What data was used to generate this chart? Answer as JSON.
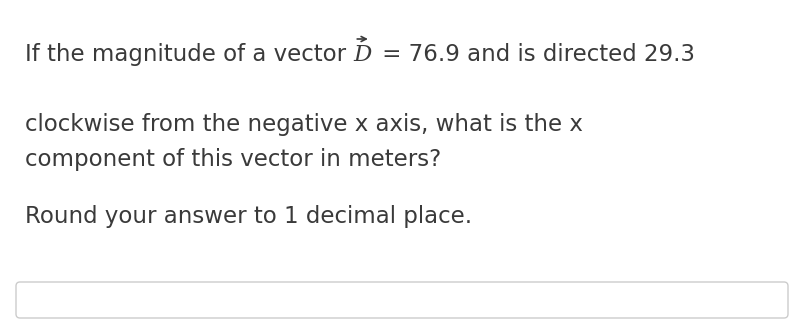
{
  "line1_prefix": "If the magnitude of a vector ",
  "line1_D": "D",
  "line1_suffix": "= 76.9 and is directed 29.3",
  "line2": "clockwise from the negative x axis, what is the x",
  "line3": "component of this vector in meters?",
  "line4": "Round your answer to 1 decimal place.",
  "bg_color": "#ffffff",
  "text_color": "#3a3a3a",
  "font_size": 16.5,
  "fig_width": 8.04,
  "fig_height": 3.26
}
